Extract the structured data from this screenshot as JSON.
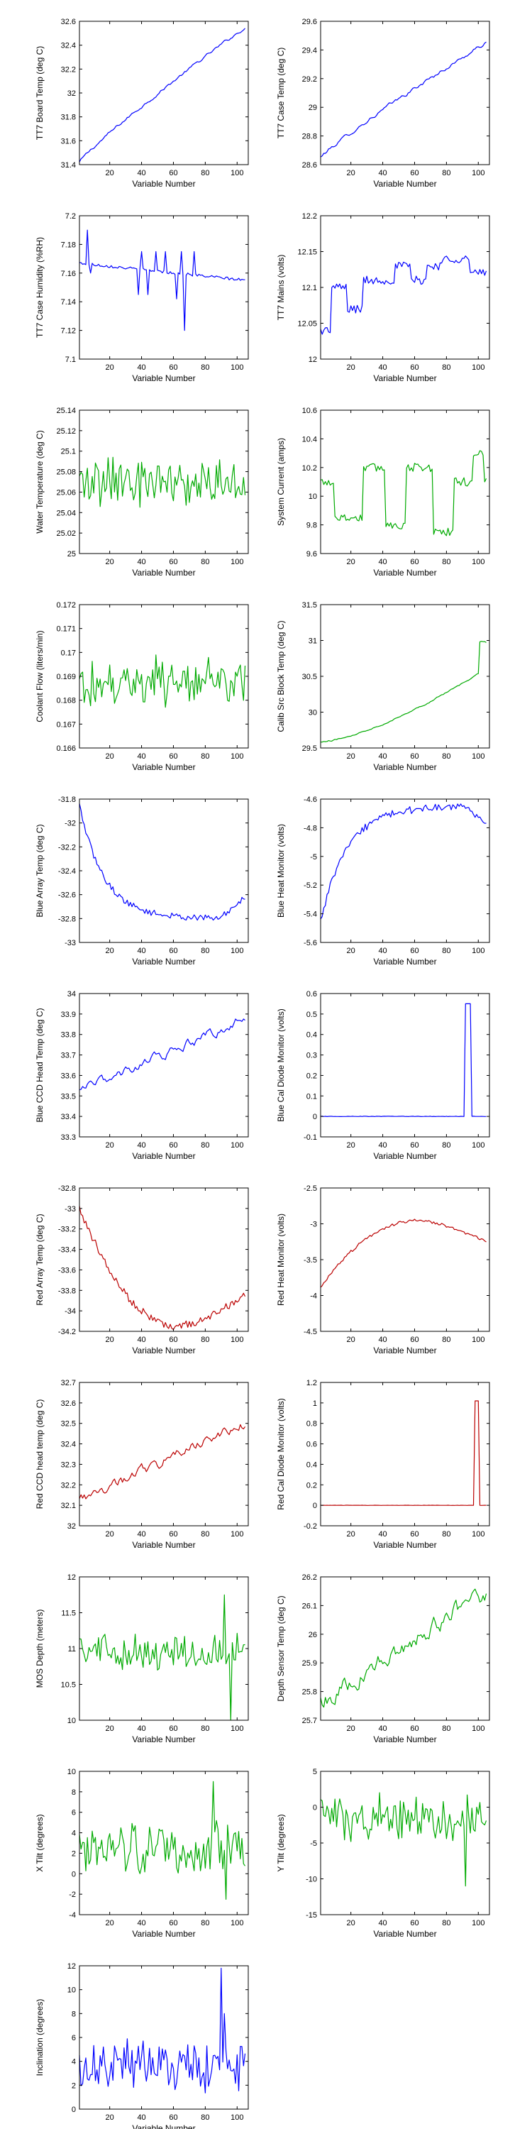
{
  "colors": {
    "blue": "#0000ff",
    "green": "#00aa00",
    "red": "#bb0000",
    "frame": "#000000"
  },
  "chart_data": [
    {
      "type": "line",
      "series": [
        {
          "color": "#0000ff",
          "shape": "trend",
          "from": 31.42,
          "to": 32.55,
          "noise": 0.01,
          "curve": 0.9
        }
      ],
      "x_range": [
        1,
        105
      ],
      "xlim": [
        1,
        107
      ],
      "ylim": [
        31.4,
        32.6
      ],
      "x_ticks": [
        20,
        40,
        60,
        80,
        100
      ],
      "y_ticks": [
        31.4,
        31.6,
        31.8,
        32,
        32.2,
        32.4,
        32.6
      ],
      "y_tick_labels": [
        "31.4",
        "31.6",
        "31.8",
        "32",
        "32.2",
        "32.4",
        "32.6"
      ],
      "xlabel": "Variable Number",
      "ylabel": "TT7 Board Temp (deg C)"
    },
    {
      "type": "line",
      "series": [
        {
          "color": "#0000ff",
          "shape": "trend",
          "from": 28.65,
          "to": 29.45,
          "noise": 0.01,
          "curve": 0.9
        }
      ],
      "x_range": [
        1,
        105
      ],
      "xlim": [
        1,
        107
      ],
      "ylim": [
        28.6,
        29.6
      ],
      "x_ticks": [
        20,
        40,
        60,
        80,
        100
      ],
      "y_ticks": [
        28.6,
        28.8,
        29,
        29.2,
        29.4,
        29.6
      ],
      "y_tick_labels": [
        "28.6",
        "28.8",
        "29",
        "29.2",
        "29.4",
        "29.6"
      ],
      "xlabel": "Variable Number",
      "ylabel": "TT7 Case Temp (deg C)"
    },
    {
      "type": "line",
      "series": [
        {
          "color": "#0000ff",
          "shape": "flat-spikes",
          "base": 7.167,
          "end": 7.155,
          "noise": 0.001,
          "spikes": [
            [
              6,
              7.19
            ],
            [
              8,
              7.16
            ],
            [
              38,
              7.145
            ],
            [
              40,
              7.175
            ],
            [
              44,
              7.145
            ],
            [
              49,
              7.175
            ],
            [
              55,
              7.175
            ],
            [
              62,
              7.142
            ],
            [
              65,
              7.175
            ],
            [
              67,
              7.12
            ],
            [
              73,
              7.175
            ]
          ]
        }
      ],
      "x_range": [
        1,
        105
      ],
      "xlim": [
        1,
        107
      ],
      "ylim": [
        7.1,
        7.2
      ],
      "x_ticks": [
        20,
        40,
        60,
        80,
        100
      ],
      "y_ticks": [
        7.1,
        7.12,
        7.14,
        7.16,
        7.18,
        7.2
      ],
      "y_tick_labels": [
        "7.1",
        "7.12",
        "7.14",
        "7.16",
        "7.18",
        "7.2"
      ],
      "xlabel": "Variable Number",
      "ylabel": "TT7 Case Humidity (%RH)"
    },
    {
      "type": "line",
      "series": [
        {
          "color": "#0000ff",
          "shape": "steps",
          "noise": 0.006,
          "levels": [
            [
              1,
              12.04
            ],
            [
              8,
              12.1
            ],
            [
              18,
              12.07
            ],
            [
              28,
              12.11
            ],
            [
              48,
              12.13
            ],
            [
              58,
              12.11
            ],
            [
              68,
              12.13
            ],
            [
              78,
              12.14
            ],
            [
              95,
              12.12
            ]
          ]
        }
      ],
      "x_range": [
        1,
        105
      ],
      "xlim": [
        1,
        107
      ],
      "ylim": [
        12,
        12.2
      ],
      "x_ticks": [
        20,
        40,
        60,
        80,
        100
      ],
      "y_ticks": [
        12,
        12.05,
        12.1,
        12.15,
        12.2
      ],
      "y_tick_labels": [
        "12",
        "12.05",
        "12.1",
        "12.15",
        "12.2"
      ],
      "xlabel": "Variable Number",
      "ylabel": "TT7 Mains  (volts)"
    },
    {
      "type": "line",
      "series": [
        {
          "color": "#00aa00",
          "shape": "noise",
          "base": 25.07,
          "noise": 0.02
        }
      ],
      "x_range": [
        1,
        105
      ],
      "xlim": [
        1,
        107
      ],
      "ylim": [
        25,
        25.14
      ],
      "x_ticks": [
        20,
        40,
        60,
        80,
        100
      ],
      "y_ticks": [
        25,
        25.02,
        25.04,
        25.06,
        25.08,
        25.1,
        25.12,
        25.14
      ],
      "y_tick_labels": [
        "25",
        "25.02",
        "25.04",
        "25.06",
        "25.08",
        "25.1",
        "25.12",
        "25.14"
      ],
      "xlabel": "Variable Number",
      "ylabel": "Water Temperature (deg C)"
    },
    {
      "type": "line",
      "series": [
        {
          "color": "#00aa00",
          "shape": "steps",
          "noise": 0.03,
          "levels": [
            [
              1,
              10.1
            ],
            [
              10,
              9.85
            ],
            [
              28,
              10.2
            ],
            [
              42,
              9.8
            ],
            [
              55,
              10.2
            ],
            [
              72,
              9.75
            ],
            [
              85,
              10.1
            ],
            [
              97,
              10.3
            ],
            [
              104,
              10.1
            ]
          ]
        }
      ],
      "x_range": [
        1,
        105
      ],
      "xlim": [
        1,
        107
      ],
      "ylim": [
        9.6,
        10.6
      ],
      "x_ticks": [
        20,
        40,
        60,
        80,
        100
      ],
      "y_ticks": [
        9.6,
        9.8,
        10,
        10.2,
        10.4,
        10.6
      ],
      "y_tick_labels": [
        "9.6",
        "9.8",
        "10",
        "10.2",
        "10.4",
        "10.6"
      ],
      "xlabel": "Variable Number",
      "ylabel": "System Current (amps)"
    },
    {
      "type": "line",
      "series": [
        {
          "color": "#00aa00",
          "shape": "noise",
          "base": 0.1688,
          "noise": 0.0008
        }
      ],
      "x_range": [
        1,
        105
      ],
      "xlim": [
        1,
        107
      ],
      "ylim": [
        0.166,
        0.172
      ],
      "x_ticks": [
        20,
        40,
        60,
        80,
        100
      ],
      "y_ticks": [
        0.166,
        0.167,
        0.168,
        0.169,
        0.17,
        0.171,
        0.172
      ],
      "y_tick_labels": [
        "0.166",
        "0.167",
        "0.168",
        "0.169",
        "0.17",
        "0.171",
        "0.172"
      ],
      "xlabel": "Variable Number",
      "ylabel": "Coolant Flow (liters/min)"
    },
    {
      "type": "line",
      "series": [
        {
          "color": "#00aa00",
          "shape": "trend",
          "from": 29.58,
          "to": 30.6,
          "noise": 0.008,
          "curve": 1.4,
          "jump": [
            101,
            30.98
          ]
        }
      ],
      "x_range": [
        1,
        105
      ],
      "xlim": [
        1,
        107
      ],
      "ylim": [
        29.5,
        31.5
      ],
      "x_ticks": [
        20,
        40,
        60,
        80,
        100
      ],
      "y_ticks": [
        29.5,
        30,
        30.5,
        31,
        31.5
      ],
      "y_tick_labels": [
        "29.5",
        "30",
        "30.5",
        "31",
        "31.5"
      ],
      "xlabel": "Variable Number",
      "ylabel": "Calib Src Block Temp (deg C)"
    },
    {
      "type": "line",
      "series": [
        {
          "color": "#0000ff",
          "shape": "decay",
          "from": -31.85,
          "to": -32.8,
          "rate": 0.065,
          "noise": 0.025,
          "tail": -32.62
        }
      ],
      "x_range": [
        1,
        105
      ],
      "xlim": [
        1,
        107
      ],
      "ylim": [
        -33,
        -31.8
      ],
      "x_ticks": [
        20,
        40,
        60,
        80,
        100
      ],
      "y_ticks": [
        -33,
        -32.8,
        -32.6,
        -32.4,
        -32.2,
        -32,
        -31.8
      ],
      "y_tick_labels": [
        "-33",
        "-32.8",
        "-32.6",
        "-32.4",
        "-32.2",
        "-32",
        "-31.8"
      ],
      "xlabel": "Variable Number",
      "ylabel": "Blue Array Temp (deg C)"
    },
    {
      "type": "line",
      "series": [
        {
          "color": "#0000ff",
          "shape": "decay",
          "from": -5.45,
          "to": -4.65,
          "rate": 0.06,
          "noise": 0.025,
          "tail": -4.75
        }
      ],
      "x_range": [
        1,
        105
      ],
      "xlim": [
        1,
        107
      ],
      "ylim": [
        -5.6,
        -4.6
      ],
      "x_ticks": [
        20,
        40,
        60,
        80,
        100
      ],
      "y_ticks": [
        -5.6,
        -5.4,
        -5.2,
        -5,
        -4.8,
        -4.6
      ],
      "y_tick_labels": [
        "-5.6",
        "-5.4",
        "-5.2",
        "-5",
        "-4.8",
        "-4.6"
      ],
      "xlabel": "Variable Number",
      "ylabel": "Blue Heat Monitor (volts)"
    },
    {
      "type": "line",
      "series": [
        {
          "color": "#0000ff",
          "shape": "trend",
          "from": 33.52,
          "to": 33.88,
          "noise": 0.018,
          "curve": 1.0
        }
      ],
      "x_range": [
        1,
        105
      ],
      "xlim": [
        1,
        107
      ],
      "ylim": [
        33.3,
        34
      ],
      "x_ticks": [
        20,
        40,
        60,
        80,
        100
      ],
      "y_ticks": [
        33.3,
        33.4,
        33.5,
        33.6,
        33.7,
        33.8,
        33.9,
        34
      ],
      "y_tick_labels": [
        "33.3",
        "33.4",
        "33.5",
        "33.6",
        "33.7",
        "33.8",
        "33.9",
        "34"
      ],
      "xlabel": "Variable Number",
      "ylabel": "Blue CCD Head Temp (deg C)"
    },
    {
      "type": "line",
      "series": [
        {
          "color": "#0000ff",
          "shape": "pulse",
          "base": 0,
          "peak": 0.55,
          "start": 92,
          "end": 95,
          "noise": 0.001
        }
      ],
      "x_range": [
        1,
        105
      ],
      "xlim": [
        1,
        107
      ],
      "ylim": [
        -0.1,
        0.6
      ],
      "x_ticks": [
        20,
        40,
        60,
        80,
        100
      ],
      "y_ticks": [
        -0.1,
        0,
        0.1,
        0.2,
        0.3,
        0.4,
        0.5,
        0.6
      ],
      "y_tick_labels": [
        "-0.1",
        "0",
        "0.1",
        "0.2",
        "0.3",
        "0.4",
        "0.5",
        "0.6"
      ],
      "xlabel": "Variable Number",
      "ylabel": "Blue Cal Diode Monitor (volts)"
    },
    {
      "type": "line",
      "series": [
        {
          "color": "#bb0000",
          "shape": "valley",
          "from": -33.0,
          "min": -34.15,
          "at": 62,
          "to": -33.85,
          "noise": 0.04
        }
      ],
      "x_range": [
        1,
        105
      ],
      "xlim": [
        1,
        107
      ],
      "ylim": [
        -34.2,
        -32.8
      ],
      "x_ticks": [
        20,
        40,
        60,
        80,
        100
      ],
      "y_ticks": [
        -34.2,
        -34,
        -33.8,
        -33.6,
        -33.4,
        -33.2,
        -33,
        -32.8
      ],
      "y_tick_labels": [
        "-34.2",
        "-34",
        "-33.8",
        "-33.6",
        "-33.4",
        "-33.2",
        "-33",
        "-32.8"
      ],
      "xlabel": "Variable Number",
      "ylabel": "Red Array Temp (deg C)"
    },
    {
      "type": "line",
      "series": [
        {
          "color": "#bb0000",
          "shape": "hill",
          "from": -3.9,
          "max": -2.95,
          "at": 65,
          "to": -3.25,
          "noise": 0.02
        }
      ],
      "x_range": [
        1,
        105
      ],
      "xlim": [
        1,
        107
      ],
      "ylim": [
        -4.5,
        -2.5
      ],
      "x_ticks": [
        20,
        40,
        60,
        80,
        100
      ],
      "y_ticks": [
        -4.5,
        -4,
        -3.5,
        -3,
        -2.5
      ],
      "y_tick_labels": [
        "-4.5",
        "-4",
        "-3.5",
        "-3",
        "-2.5"
      ],
      "xlabel": "Variable Number",
      "ylabel": "Red Heat Monitor (volts)"
    },
    {
      "type": "line",
      "series": [
        {
          "color": "#bb0000",
          "shape": "trend",
          "from": 32.12,
          "to": 32.5,
          "noise": 0.02,
          "curve": 1.0
        }
      ],
      "x_range": [
        1,
        105
      ],
      "xlim": [
        1,
        107
      ],
      "ylim": [
        32,
        32.7
      ],
      "x_ticks": [
        20,
        40,
        60,
        80,
        100
      ],
      "y_ticks": [
        32,
        32.1,
        32.2,
        32.3,
        32.4,
        32.5,
        32.6,
        32.7
      ],
      "y_tick_labels": [
        "32",
        "32.1",
        "32.2",
        "32.3",
        "32.4",
        "32.5",
        "32.6",
        "32.7"
      ],
      "xlabel": "Variable Number",
      "ylabel": "Red CCD head temp (deg C)"
    },
    {
      "type": "line",
      "series": [
        {
          "color": "#bb0000",
          "shape": "pulse",
          "base": 0,
          "peak": 1.02,
          "start": 98,
          "end": 100,
          "noise": 0.001
        }
      ],
      "x_range": [
        1,
        105
      ],
      "xlim": [
        1,
        107
      ],
      "ylim": [
        -0.2,
        1.2
      ],
      "x_ticks": [
        20,
        40,
        60,
        80,
        100
      ],
      "y_ticks": [
        -0.2,
        0,
        0.2,
        0.4,
        0.6,
        0.8,
        1,
        1.2
      ],
      "y_tick_labels": [
        "-0.2",
        "0",
        "0.2",
        "0.4",
        "0.6",
        "0.8",
        "1",
        "1.2"
      ],
      "xlabel": "Variable Number",
      "ylabel": "Red Cal Diode Monitor (volts)"
    },
    {
      "type": "line",
      "series": [
        {
          "color": "#00aa00",
          "shape": "noise",
          "base": 10.95,
          "noise": 0.22,
          "extremes": [
            [
              92,
              11.75
            ],
            [
              96,
              10.0
            ]
          ]
        }
      ],
      "x_range": [
        1,
        105
      ],
      "xlim": [
        1,
        107
      ],
      "ylim": [
        10,
        12
      ],
      "x_ticks": [
        20,
        40,
        60,
        80,
        100
      ],
      "y_ticks": [
        10,
        10.5,
        11,
        11.5,
        12
      ],
      "y_tick_labels": [
        "10",
        "10.5",
        "11",
        "11.5",
        "12"
      ],
      "xlabel": "Variable Number",
      "ylabel": "MOS Depth  (meters)"
    },
    {
      "type": "line",
      "series": [
        {
          "color": "#00aa00",
          "shape": "trend",
          "from": 25.76,
          "to": 26.15,
          "noise": 0.025,
          "curve": 1.0
        }
      ],
      "x_range": [
        1,
        105
      ],
      "xlim": [
        1,
        107
      ],
      "ylim": [
        25.7,
        26.2
      ],
      "x_ticks": [
        20,
        40,
        60,
        80,
        100
      ],
      "y_ticks": [
        25.7,
        25.8,
        25.9,
        26,
        26.1,
        26.2
      ],
      "y_tick_labels": [
        "25.7",
        "25.8",
        "25.9",
        "26",
        "26.1",
        "26.2"
      ],
      "xlabel": "Variable Number",
      "ylabel": "Depth Sensor Temp (deg C)"
    },
    {
      "type": "line",
      "series": [
        {
          "color": "#00aa00",
          "shape": "noise",
          "base": 2.5,
          "noise": 2.0,
          "extremes": [
            [
              85,
              9.0
            ],
            [
              93,
              -2.5
            ]
          ]
        }
      ],
      "x_range": [
        1,
        105
      ],
      "xlim": [
        1,
        107
      ],
      "ylim": [
        -4,
        10
      ],
      "x_ticks": [
        20,
        40,
        60,
        80,
        100
      ],
      "y_ticks": [
        -4,
        -2,
        0,
        2,
        4,
        6,
        8,
        10
      ],
      "y_tick_labels": [
        "-4",
        "-2",
        "0",
        "2",
        "4",
        "6",
        "8",
        "10"
      ],
      "xlabel": "Variable Number",
      "ylabel": "X Tilt  (degrees)"
    },
    {
      "type": "line",
      "series": [
        {
          "color": "#00aa00",
          "shape": "noise",
          "base": -1.5,
          "noise": 2.6,
          "extremes": [
            [
              92,
              -11.0
            ]
          ]
        }
      ],
      "x_range": [
        1,
        105
      ],
      "xlim": [
        1,
        107
      ],
      "ylim": [
        -15,
        5
      ],
      "x_ticks": [
        20,
        40,
        60,
        80,
        100
      ],
      "y_ticks": [
        -15,
        -10,
        -5,
        0,
        5
      ],
      "y_tick_labels": [
        "-15",
        "-10",
        "-5",
        "0",
        "5"
      ],
      "xlabel": "Variable Number",
      "ylabel": "Y Tilt  (degrees)"
    },
    {
      "type": "line",
      "series": [
        {
          "color": "#0000ff",
          "shape": "noise",
          "base": 3.6,
          "noise": 1.8,
          "positive": true,
          "extremes": [
            [
              90,
              11.8
            ],
            [
              92,
              8.0
            ]
          ]
        }
      ],
      "x_range": [
        1,
        105
      ],
      "xlim": [
        1,
        107
      ],
      "ylim": [
        0,
        12
      ],
      "x_ticks": [
        20,
        40,
        60,
        80,
        100
      ],
      "y_ticks": [
        0,
        2,
        4,
        6,
        8,
        10,
        12
      ],
      "y_tick_labels": [
        "0",
        "2",
        "4",
        "6",
        "8",
        "10",
        "12"
      ],
      "xlabel": "Variable Number",
      "ylabel": "Inclination  (degrees)"
    }
  ]
}
